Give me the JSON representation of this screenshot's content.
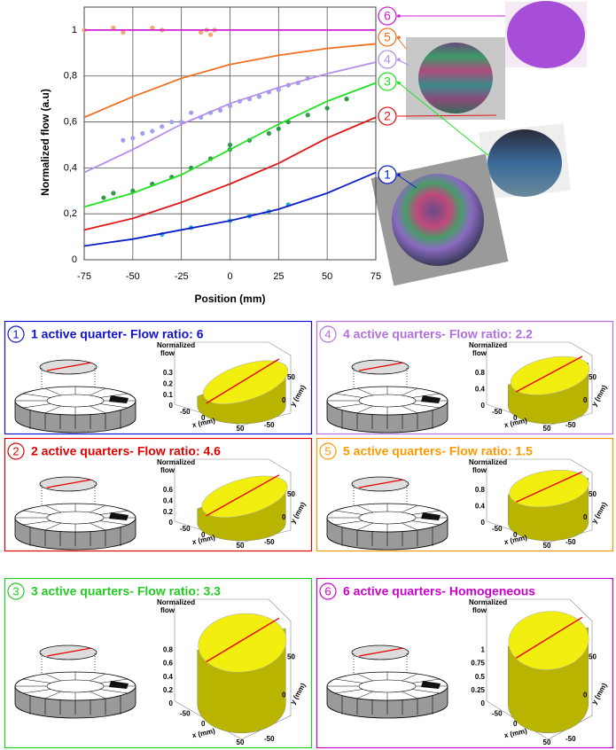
{
  "chart_data": {
    "type": "line",
    "x_label": "Position (mm)",
    "y_label": "Normalized flow (a.u)",
    "x": [
      -75,
      -50,
      -25,
      0,
      25,
      50,
      75
    ],
    "xlim": [
      -75,
      75
    ],
    "xticks": [
      -75,
      -50,
      -25,
      0,
      25,
      50,
      75
    ],
    "ylim": [
      0,
      1.1
    ],
    "yticks": [
      0,
      {
        "value": 0.2,
        "label": "0,2"
      },
      {
        "value": 0.4,
        "label": "0,4"
      },
      {
        "value": 0.6,
        "label": "0,6"
      },
      {
        "value": 0.8,
        "label": "0,8"
      },
      1
    ],
    "grid": true,
    "series": [
      {
        "name": "1",
        "color": "#0a1fc8",
        "values": [
          0.06,
          0.09,
          0.13,
          0.17,
          0.22,
          0.29,
          0.38
        ]
      },
      {
        "name": "2",
        "color": "#e01818",
        "values": [
          0.13,
          0.18,
          0.25,
          0.33,
          0.42,
          0.53,
          0.62
        ]
      },
      {
        "name": "3",
        "color": "#22e022",
        "values": [
          0.23,
          0.29,
          0.37,
          0.48,
          0.59,
          0.69,
          0.77
        ]
      },
      {
        "name": "4",
        "color": "#b48ee8",
        "values": [
          0.38,
          0.48,
          0.59,
          0.68,
          0.75,
          0.81,
          0.86
        ]
      },
      {
        "name": "5",
        "color": "#f07020",
        "values": [
          0.62,
          0.71,
          0.79,
          0.85,
          0.89,
          0.92,
          0.94
        ]
      },
      {
        "name": "6",
        "color": "#d020d0",
        "values": [
          1.0,
          1.0,
          1.0,
          1.0,
          1.0,
          1.0,
          1.0
        ]
      }
    ],
    "points": [
      {
        "color": "#2aa8d8",
        "x": [
          -35,
          -20,
          0,
          10,
          20,
          30
        ],
        "values": [
          0.11,
          0.14,
          0.17,
          0.19,
          0.21,
          0.24
        ]
      },
      {
        "color": "#2e9a4a",
        "x": [
          -65,
          -60,
          -50,
          -40,
          -30,
          -20,
          -10,
          0,
          0,
          10,
          20,
          25,
          30,
          40,
          50,
          60
        ],
        "values": [
          0.27,
          0.29,
          0.3,
          0.33,
          0.36,
          0.4,
          0.44,
          0.48,
          0.5,
          0.52,
          0.55,
          0.57,
          0.6,
          0.63,
          0.66,
          0.7
        ]
      },
      {
        "color": "#a0a0f0",
        "x": [
          -55,
          -50,
          -45,
          -40,
          -35,
          -30,
          -25,
          -20,
          -15,
          -10,
          -5,
          0,
          5,
          10,
          15,
          20,
          25,
          30,
          35,
          40
        ],
        "values": [
          0.52,
          0.53,
          0.55,
          0.56,
          0.58,
          0.6,
          0.6,
          0.64,
          0.62,
          0.64,
          0.65,
          0.67,
          0.69,
          0.7,
          0.71,
          0.73,
          0.74,
          0.76,
          0.77,
          0.79
        ]
      },
      {
        "color": "#f4a878",
        "x": [
          -75,
          -60,
          -55,
          -40,
          -35,
          -15,
          -12,
          -10,
          -8
        ],
        "values": [
          1.0,
          1.01,
          0.99,
          1.01,
          1.0,
          0.99,
          1.0,
          0.98,
          1.0
        ]
      }
    ]
  },
  "plot_labels": {
    "z": [
      "Normalized",
      "flow"
    ],
    "x": "x (mm)",
    "y": "y (mm)",
    "ticks": [
      "-50",
      "0",
      "50"
    ]
  },
  "panels": [
    {
      "number": "1",
      "title": "1 active quarter- Flow ratio: 6",
      "color": "#1010d0",
      "zticks": [
        "0.3",
        "0.2",
        "0.1",
        "0"
      ]
    },
    {
      "number": "4",
      "title": "4 active quarters- Flow ratio: 2.2",
      "color": "#b070e0",
      "zticks": [
        "0.8",
        "0.4",
        "0"
      ]
    },
    {
      "number": "2",
      "title": "2 active quarters- Flow ratio: 4.6",
      "color": "#e00000",
      "zticks": [
        "0.6",
        "0.4",
        "0.2",
        "0"
      ]
    },
    {
      "number": "5",
      "title": "5 active quarters- Flow ratio: 1.5",
      "color": "#ff9900",
      "zticks": [
        "0.8",
        "0.4",
        "0"
      ]
    },
    {
      "number": "3",
      "title": "3 active quarters- Flow ratio: 3.3",
      "color": "#22cc22",
      "zticks": [
        "0.8",
        "0.6",
        "0.4",
        "0.2",
        "0"
      ]
    },
    {
      "number": "6",
      "title": "6 active quarters- Homogeneous",
      "color": "#cc00cc",
      "zticks": [
        "1",
        "0.75",
        "0.5",
        "0.25",
        "0"
      ]
    }
  ]
}
